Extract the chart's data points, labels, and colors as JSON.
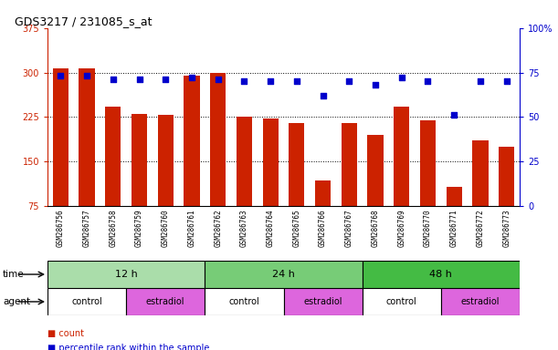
{
  "title": "GDS3217 / 231085_s_at",
  "samples": [
    "GSM286756",
    "GSM286757",
    "GSM286758",
    "GSM286759",
    "GSM286760",
    "GSM286761",
    "GSM286762",
    "GSM286763",
    "GSM286764",
    "GSM286765",
    "GSM286766",
    "GSM286767",
    "GSM286768",
    "GSM286769",
    "GSM286770",
    "GSM286771",
    "GSM286772",
    "GSM286773"
  ],
  "counts": [
    307,
    307,
    243,
    230,
    229,
    295,
    300,
    225,
    222,
    215,
    118,
    215,
    195,
    243,
    220,
    107,
    185,
    175
  ],
  "percentiles": [
    73,
    73,
    71,
    71,
    71,
    72,
    71,
    70,
    70,
    70,
    62,
    70,
    68,
    72,
    70,
    51,
    70,
    70
  ],
  "ylim_left": [
    75,
    375
  ],
  "ylim_right": [
    0,
    100
  ],
  "yticks_left": [
    75,
    150,
    225,
    300,
    375
  ],
  "yticks_right": [
    0,
    25,
    50,
    75,
    100
  ],
  "bar_color": "#cc2200",
  "dot_color": "#0000cc",
  "bg_color": "#ffffff",
  "sample_bg_color": "#cccccc",
  "time_colors": [
    "#aaddaa",
    "#77cc77",
    "#44bb44"
  ],
  "time_labels": [
    "12 h",
    "24 h",
    "48 h"
  ],
  "time_starts": [
    0,
    6,
    12
  ],
  "time_ends": [
    6,
    12,
    18
  ],
  "agent_labels": [
    "control",
    "estradiol",
    "control",
    "estradiol",
    "control",
    "estradiol"
  ],
  "agent_starts": [
    0,
    3,
    6,
    9,
    12,
    15
  ],
  "agent_ends": [
    3,
    6,
    9,
    12,
    15,
    18
  ],
  "agent_colors": [
    "#ffffff",
    "#dd66dd",
    "#ffffff",
    "#dd66dd",
    "#ffffff",
    "#dd66dd"
  ]
}
